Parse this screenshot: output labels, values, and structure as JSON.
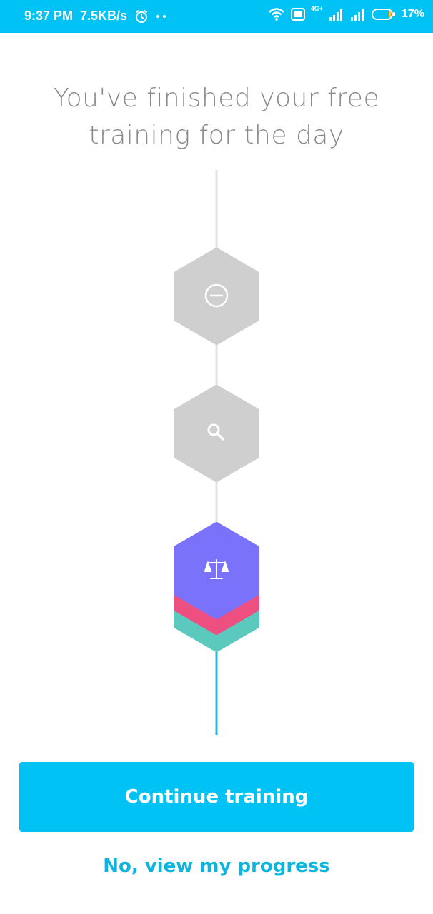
{
  "status_bar": {
    "time": "9:37 PM",
    "speed": "7.5KB/s",
    "network_label": "4G+",
    "battery": "17%",
    "icons": [
      "alarm-icon",
      "more-dots-icon",
      "wifi-icon",
      "volte-icon",
      "signal-icon",
      "signal-icon-2",
      "battery-icon"
    ]
  },
  "main": {
    "title_line1": "You've finished your free",
    "title_line2": "training for the day",
    "steps": [
      {
        "icon": "minus-circle-icon",
        "state": "locked"
      },
      {
        "icon": "search-icon",
        "state": "locked"
      },
      {
        "icon": "scales-icon",
        "state": "current"
      }
    ],
    "colors": {
      "accent": "#00C2F5",
      "hex_gray": "#CFCFCF",
      "purple": "#7A72FB",
      "pink": "#EC4F80",
      "teal": "#5CC9BE"
    }
  },
  "actions": {
    "continue_label": "Continue training",
    "progress_link": "No, view my progress"
  }
}
